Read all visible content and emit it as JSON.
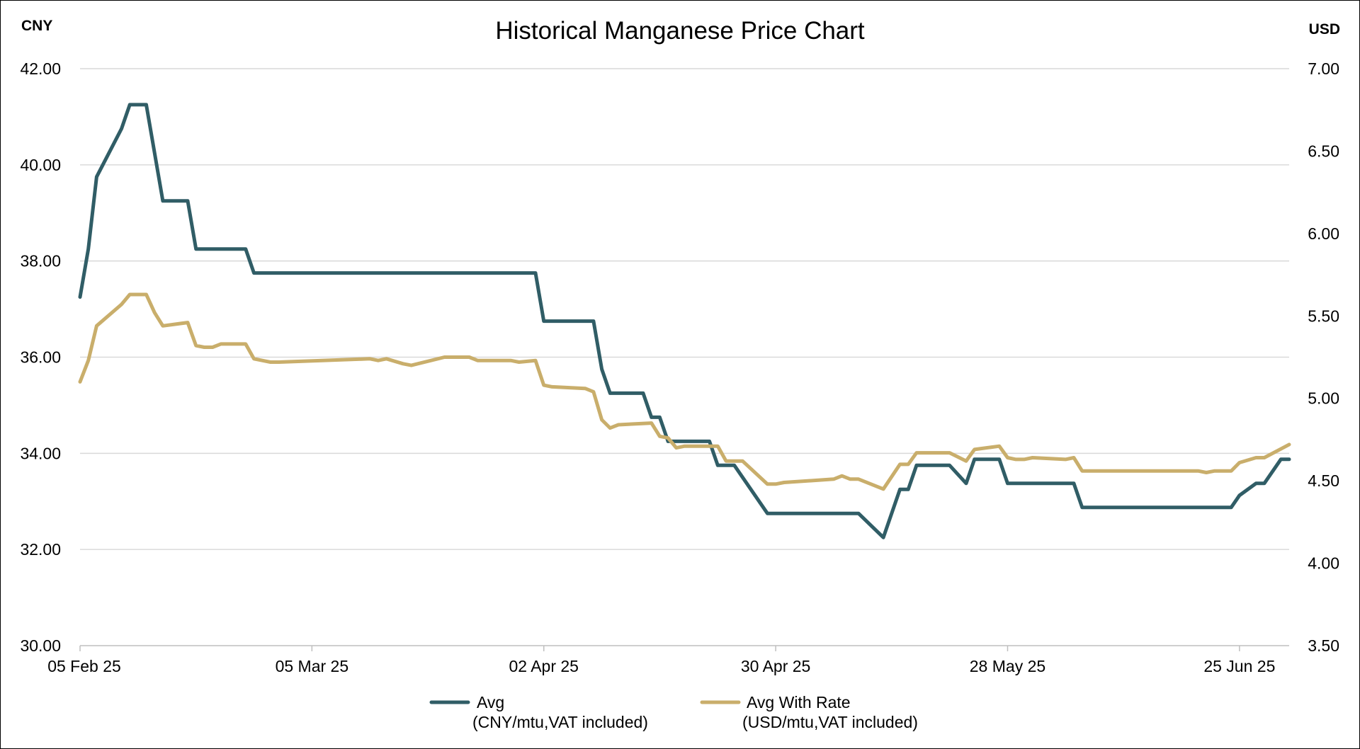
{
  "chart_data": {
    "type": "line",
    "title": "Historical Manganese Price Chart",
    "left_axis_unit": "CNY",
    "right_axis_unit": "USD",
    "x_ticks": [
      "05 Feb 25",
      "05 Mar 25",
      "02 Apr 25",
      "30 Apr 25",
      "28 May 25",
      "25 Jun 25"
    ],
    "x_tick_dates": [
      "2025-02-05",
      "2025-03-05",
      "2025-04-02",
      "2025-04-30",
      "2025-05-28",
      "2025-06-25"
    ],
    "x_range": [
      "2025-02-05",
      "2025-07-01"
    ],
    "y_left": {
      "lim": [
        30,
        42
      ],
      "ticks": [
        "30.00",
        "32.00",
        "34.00",
        "36.00",
        "38.00",
        "40.00",
        "42.00"
      ]
    },
    "y_right": {
      "lim": [
        3.5,
        7.0
      ],
      "ticks": [
        "3.50",
        "4.00",
        "4.50",
        "5.00",
        "5.50",
        "6.00",
        "6.50",
        "7.00"
      ]
    },
    "grid": true,
    "legend_position": "bottom",
    "series": [
      {
        "name": "Avg",
        "subtitle": "(CNY/mtu,VAT included)",
        "axis": "left",
        "color": "#305d66",
        "points": [
          [
            "2025-02-05",
            37.25
          ],
          [
            "2025-02-06",
            38.25
          ],
          [
            "2025-02-07",
            39.75
          ],
          [
            "2025-02-10",
            40.75
          ],
          [
            "2025-02-11",
            41.25
          ],
          [
            "2025-02-13",
            41.25
          ],
          [
            "2025-02-15",
            39.25
          ],
          [
            "2025-02-18",
            39.25
          ],
          [
            "2025-02-19",
            38.25
          ],
          [
            "2025-02-25",
            38.25
          ],
          [
            "2025-02-26",
            37.75
          ],
          [
            "2025-04-01",
            37.75
          ],
          [
            "2025-04-02",
            36.75
          ],
          [
            "2025-04-08",
            36.75
          ],
          [
            "2025-04-09",
            35.75
          ],
          [
            "2025-04-10",
            35.25
          ],
          [
            "2025-04-14",
            35.25
          ],
          [
            "2025-04-15",
            34.75
          ],
          [
            "2025-04-16",
            34.75
          ],
          [
            "2025-04-17",
            34.25
          ],
          [
            "2025-04-22",
            34.25
          ],
          [
            "2025-04-23",
            33.75
          ],
          [
            "2025-04-25",
            33.75
          ],
          [
            "2025-04-29",
            32.75
          ],
          [
            "2025-05-10",
            32.75
          ],
          [
            "2025-05-13",
            32.25
          ],
          [
            "2025-05-15",
            33.25
          ],
          [
            "2025-05-16",
            33.25
          ],
          [
            "2025-05-17",
            33.75
          ],
          [
            "2025-05-21",
            33.75
          ],
          [
            "2025-05-23",
            33.375
          ],
          [
            "2025-05-24",
            33.875
          ],
          [
            "2025-05-27",
            33.875
          ],
          [
            "2025-05-28",
            33.375
          ],
          [
            "2025-06-05",
            33.375
          ],
          [
            "2025-06-06",
            32.875
          ],
          [
            "2025-06-24",
            32.875
          ],
          [
            "2025-06-25",
            33.125
          ],
          [
            "2025-06-27",
            33.375
          ],
          [
            "2025-06-28",
            33.375
          ],
          [
            "2025-06-30",
            33.875
          ],
          [
            "2025-07-01",
            33.875
          ]
        ]
      },
      {
        "name": "Avg With Rate",
        "subtitle": "(USD/mtu,VAT included)",
        "axis": "right",
        "color": "#c9ae6b",
        "points": [
          [
            "2025-02-05",
            5.1
          ],
          [
            "2025-02-06",
            5.23
          ],
          [
            "2025-02-07",
            5.44
          ],
          [
            "2025-02-10",
            5.57
          ],
          [
            "2025-02-11",
            5.63
          ],
          [
            "2025-02-13",
            5.63
          ],
          [
            "2025-02-14",
            5.52
          ],
          [
            "2025-02-15",
            5.44
          ],
          [
            "2025-02-18",
            5.46
          ],
          [
            "2025-02-19",
            5.32
          ],
          [
            "2025-02-20",
            5.31
          ],
          [
            "2025-02-21",
            5.31
          ],
          [
            "2025-02-22",
            5.33
          ],
          [
            "2025-02-25",
            5.33
          ],
          [
            "2025-02-26",
            5.24
          ],
          [
            "2025-02-28",
            5.22
          ],
          [
            "2025-03-01",
            5.22
          ],
          [
            "2025-03-12",
            5.24
          ],
          [
            "2025-03-13",
            5.23
          ],
          [
            "2025-03-14",
            5.24
          ],
          [
            "2025-03-16",
            5.21
          ],
          [
            "2025-03-17",
            5.2
          ],
          [
            "2025-03-21",
            5.25
          ],
          [
            "2025-03-24",
            5.25
          ],
          [
            "2025-03-25",
            5.23
          ],
          [
            "2025-03-29",
            5.23
          ],
          [
            "2025-03-30",
            5.22
          ],
          [
            "2025-04-01",
            5.23
          ],
          [
            "2025-04-02",
            5.08
          ],
          [
            "2025-04-03",
            5.07
          ],
          [
            "2025-04-07",
            5.06
          ],
          [
            "2025-04-08",
            5.04
          ],
          [
            "2025-04-09",
            4.87
          ],
          [
            "2025-04-10",
            4.82
          ],
          [
            "2025-04-11",
            4.84
          ],
          [
            "2025-04-15",
            4.85
          ],
          [
            "2025-04-16",
            4.77
          ],
          [
            "2025-04-17",
            4.76
          ],
          [
            "2025-04-18",
            4.7
          ],
          [
            "2025-04-19",
            4.71
          ],
          [
            "2025-04-23",
            4.71
          ],
          [
            "2025-04-24",
            4.62
          ],
          [
            "2025-04-26",
            4.62
          ],
          [
            "2025-04-29",
            4.48
          ],
          [
            "2025-04-30",
            4.48
          ],
          [
            "2025-05-01",
            4.49
          ],
          [
            "2025-05-07",
            4.51
          ],
          [
            "2025-05-08",
            4.53
          ],
          [
            "2025-05-09",
            4.51
          ],
          [
            "2025-05-10",
            4.51
          ],
          [
            "2025-05-13",
            4.45
          ],
          [
            "2025-05-15",
            4.6
          ],
          [
            "2025-05-16",
            4.6
          ],
          [
            "2025-05-17",
            4.67
          ],
          [
            "2025-05-21",
            4.67
          ],
          [
            "2025-05-23",
            4.62
          ],
          [
            "2025-05-24",
            4.69
          ],
          [
            "2025-05-27",
            4.71
          ],
          [
            "2025-05-28",
            4.64
          ],
          [
            "2025-05-29",
            4.63
          ],
          [
            "2025-05-30",
            4.63
          ],
          [
            "2025-05-31",
            4.64
          ],
          [
            "2025-06-04",
            4.63
          ],
          [
            "2025-06-05",
            4.64
          ],
          [
            "2025-06-06",
            4.56
          ],
          [
            "2025-06-20",
            4.56
          ],
          [
            "2025-06-21",
            4.55
          ],
          [
            "2025-06-22",
            4.56
          ],
          [
            "2025-06-24",
            4.56
          ],
          [
            "2025-06-25",
            4.61
          ],
          [
            "2025-06-27",
            4.64
          ],
          [
            "2025-06-28",
            4.64
          ],
          [
            "2025-07-01",
            4.72
          ]
        ]
      }
    ]
  }
}
